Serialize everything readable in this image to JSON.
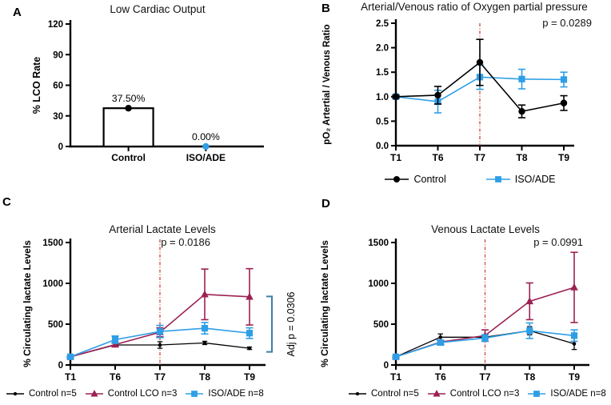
{
  "figure": {
    "background": "#ffffff"
  },
  "colors": {
    "axis": "#000000",
    "control_black": "#000000",
    "iso_blue": "#2E9FE6",
    "lco_maroon": "#9B2153",
    "timeline_red": "#D14B41",
    "bracket_blue": "#3F7FA6"
  },
  "chart_data": [
    {
      "panel": "A",
      "type": "bar",
      "title": "Low Cardiac Output",
      "ylabel": "% LCO Rate",
      "ylim": [
        0,
        120
      ],
      "yticks": [
        0,
        30,
        60,
        90,
        120
      ],
      "ytick_labels": [
        "0",
        "30",
        "60",
        "90",
        "120"
      ],
      "categories": [
        "Control",
        "ISO/ADE"
      ],
      "values": [
        37.5,
        0
      ],
      "value_labels": [
        "37.50%",
        "0.00%"
      ],
      "bar_fill": "#ffffff",
      "bar_stroke": "#000000",
      "point_colors": [
        "#000000",
        "#2E9FE6"
      ]
    },
    {
      "panel": "B",
      "type": "line",
      "title": "Arterial/Venous ratio of Oxygen partial pressure",
      "p_label": "p = 0.0289",
      "ylabel": "pO₂ Artertial / Venous Ratio",
      "ylim": [
        0,
        2.5
      ],
      "yticks": [
        0,
        0.5,
        1,
        1.5,
        2,
        2.5
      ],
      "ytick_labels": [
        "0.0",
        "0.5",
        "1.0",
        "1.5",
        "2.0",
        "2.5"
      ],
      "x": [
        "T1",
        "T6",
        "T7",
        "T8",
        "T9"
      ],
      "vline_at": "T7",
      "draw_order": [
        1,
        0
      ],
      "series": [
        {
          "name": "Control",
          "color": "#000000",
          "marker": "circle",
          "values": [
            1.0,
            1.03,
            1.7,
            0.7,
            0.87
          ],
          "errors": [
            0.03,
            0.18,
            0.47,
            0.13,
            0.15
          ]
        },
        {
          "name": "ISO/ADE",
          "color": "#2E9FE6",
          "marker": "square",
          "values": [
            1.0,
            0.9,
            1.4,
            1.36,
            1.35
          ],
          "errors": [
            0.03,
            0.23,
            0.25,
            0.2,
            0.15
          ]
        }
      ]
    },
    {
      "panel": "C",
      "type": "line",
      "title": "Arterial Lactate Levels",
      "p_label": "p = 0.0186",
      "ylabel": "% Circulating lactate Levels",
      "ylim": [
        0,
        1500
      ],
      "yticks": [
        0,
        500,
        1000,
        1500
      ],
      "ytick_labels": [
        "0",
        "500",
        "1000",
        "1500"
      ],
      "x": [
        "T1",
        "T6",
        "T7",
        "T8",
        "T9"
      ],
      "vline_at": "T7",
      "series": [
        {
          "name": "Control n=5",
          "color": "#000000",
          "marker": "dot",
          "values": [
            100,
            245,
            245,
            270,
            205
          ],
          "errors": [
            10,
            20,
            40,
            20,
            15
          ]
        },
        {
          "name": "Control LCO n=3",
          "color": "#9B2153",
          "marker": "triangle",
          "values": [
            100,
            250,
            400,
            865,
            835
          ],
          "errors": [
            10,
            20,
            55,
            310,
            345
          ]
        },
        {
          "name": "ISO/ADE n=8",
          "color": "#2E9FE6",
          "marker": "square",
          "values": [
            100,
            310,
            410,
            450,
            390
          ],
          "errors": [
            10,
            45,
            75,
            70,
            65
          ]
        }
      ],
      "bracket": {
        "from": 160,
        "to": 840,
        "label": "Adj p = 0.0306"
      }
    },
    {
      "panel": "D",
      "type": "line",
      "title": "Venous Lactate Levels",
      "p_label": "p = 0.0991",
      "ylabel": "% Circulating lactate Levels",
      "ylim": [
        0,
        1500
      ],
      "yticks": [
        0,
        500,
        1000,
        1500
      ],
      "ytick_labels": [
        "0",
        "500",
        "1000",
        "1500"
      ],
      "x": [
        "T1",
        "T6",
        "T7",
        "T8",
        "T9"
      ],
      "vline_at": "T7",
      "series": [
        {
          "name": "Control n=5",
          "color": "#000000",
          "marker": "dot",
          "values": [
            100,
            340,
            340,
            420,
            260
          ],
          "errors": [
            10,
            40,
            30,
            50,
            70
          ]
        },
        {
          "name": "Control LCO n=3",
          "color": "#9B2153",
          "marker": "triangle",
          "values": [
            100,
            280,
            360,
            780,
            950
          ],
          "errors": [
            10,
            25,
            70,
            225,
            430
          ]
        },
        {
          "name": "ISO/ADE n=8",
          "color": "#2E9FE6",
          "marker": "square",
          "values": [
            100,
            275,
            330,
            420,
            360
          ],
          "errors": [
            10,
            30,
            40,
            95,
            70
          ]
        }
      ]
    }
  ]
}
